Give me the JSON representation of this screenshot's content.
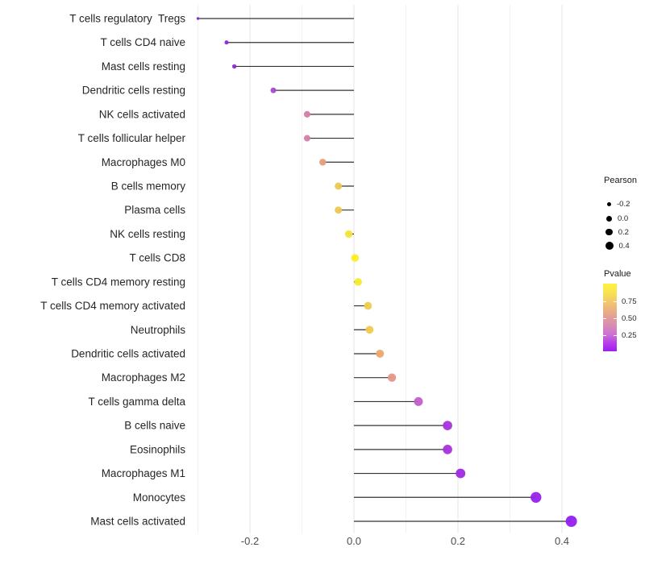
{
  "chart_data": {
    "type": "lollipop",
    "title": "",
    "xlabel": "",
    "ylabel": "",
    "x_ticks": [
      -0.2,
      0.0,
      0.2,
      0.4
    ],
    "x_tick_labels": [
      "-0.2",
      "0.0",
      "0.2",
      "0.4"
    ],
    "x_minor_ticks": [
      -0.3,
      -0.1,
      0.1,
      0.3
    ],
    "xlim": [
      -0.313,
      0.467
    ],
    "grid": "vertical major+minor, light gray on white",
    "rows": [
      {
        "label": "T cells regulatory  Tregs",
        "pearson": -0.3,
        "color": "#8526d6"
      },
      {
        "label": "T cells CD4 naive",
        "pearson": -0.245,
        "color": "#9129d3"
      },
      {
        "label": "Mast cells resting",
        "pearson": -0.23,
        "color": "#8f2bd1"
      },
      {
        "label": "Dendritic cells resting",
        "pearson": -0.155,
        "color": "#a74ace"
      },
      {
        "label": "NK cells activated",
        "pearson": -0.09,
        "color": "#d47ea6"
      },
      {
        "label": "T cells follicular helper",
        "pearson": -0.09,
        "color": "#d47ea6"
      },
      {
        "label": "Macrophages M0",
        "pearson": -0.06,
        "color": "#e69c7c"
      },
      {
        "label": "B cells memory",
        "pearson": -0.03,
        "color": "#edc754"
      },
      {
        "label": "Plasma cells",
        "pearson": -0.03,
        "color": "#edc754"
      },
      {
        "label": "NK cells resting",
        "pearson": -0.01,
        "color": "#f4e535"
      },
      {
        "label": "T cells CD8",
        "pearson": 0.002,
        "color": "#f9ef25"
      },
      {
        "label": "T cells CD4 memory resting",
        "pearson": 0.008,
        "color": "#f7ea2b"
      },
      {
        "label": "T cells CD4 memory activated",
        "pearson": 0.027,
        "color": "#efcc4d"
      },
      {
        "label": "Neutrophils",
        "pearson": 0.03,
        "color": "#efcc4d"
      },
      {
        "label": "Dendritic cells activated",
        "pearson": 0.05,
        "color": "#eba96e"
      },
      {
        "label": "Macrophages M2",
        "pearson": 0.073,
        "color": "#e6968a"
      },
      {
        "label": "T cells gamma delta",
        "pearson": 0.124,
        "color": "#c45fc8"
      },
      {
        "label": "B cells naive",
        "pearson": 0.18,
        "color": "#a832db"
      },
      {
        "label": "Eosinophils",
        "pearson": 0.18,
        "color": "#a832db"
      },
      {
        "label": "Macrophages M1",
        "pearson": 0.205,
        "color": "#9e2ae3"
      },
      {
        "label": "Monocytes",
        "pearson": 0.35,
        "color": "#9722ec"
      },
      {
        "label": "Mast cells activated",
        "pearson": 0.418,
        "color": "#9320f0"
      }
    ],
    "legend_size": {
      "title": "Pearson",
      "entries": [
        {
          "label": "-0.2",
          "diameter": 5
        },
        {
          "label": "0.0",
          "diameter": 7
        },
        {
          "label": "0.2",
          "diameter": 8.5
        },
        {
          "label": "0.4",
          "diameter": 10
        }
      ]
    },
    "legend_color": {
      "title": "Pvalue",
      "tick_labels": [
        "0.75",
        "0.50",
        "0.25"
      ],
      "tick_positions": [
        0.26,
        0.515,
        0.76
      ],
      "gradient_stops": [
        {
          "pos": 0.0,
          "color": "#fcf43e"
        },
        {
          "pos": 0.15,
          "color": "#f8e055"
        },
        {
          "pos": 0.32,
          "color": "#f0bd76"
        },
        {
          "pos": 0.48,
          "color": "#e3a192"
        },
        {
          "pos": 0.62,
          "color": "#d88bb4"
        },
        {
          "pos": 0.76,
          "color": "#cb6fd4"
        },
        {
          "pos": 0.88,
          "color": "#b53ee9"
        },
        {
          "pos": 1.0,
          "color": "#9d1ef2"
        }
      ]
    },
    "style": {
      "stem_color": "#333333",
      "grid_major_color": "#e4e4e4",
      "grid_minor_color": "#f2f2f2",
      "axis_text_color": "#4d4d4d",
      "category_text_color": "#262626",
      "background": "#ffffff"
    }
  }
}
